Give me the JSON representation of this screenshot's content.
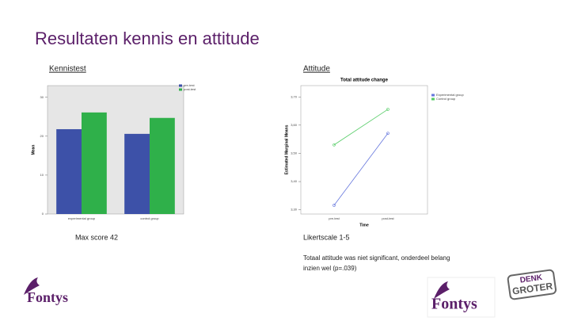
{
  "title": "Resultaten kennis en attitude",
  "left_heading": "Kennistest",
  "left_note": "Max score 42",
  "right_heading": "Attitude",
  "right_notes": [
    "Likertscale 1-5",
    "Totaal attitude was niet significant, onderdeel belang",
    "inzien wel (p=.039)"
  ],
  "logo_text": "Fontys",
  "badge": [
    "DENK",
    "GROTER"
  ],
  "chart_data": [
    {
      "type": "bar",
      "y_label": "Mean",
      "categories": [
        "experimental group",
        "control group"
      ],
      "series": [
        {
          "name": "pre-test",
          "color": "#3d51a8",
          "values": [
            21.8,
            20.6
          ]
        },
        {
          "name": "post-test",
          "color": "#2fb04a",
          "values": [
            26.1,
            24.7
          ]
        }
      ],
      "ylim": [
        0,
        33
      ],
      "yticks": [
        0,
        10,
        20,
        30
      ],
      "grid": false
    },
    {
      "type": "line",
      "title": "Total attitude change",
      "x_label": "Time",
      "y_label": "Estimated Marginal Means",
      "categories": [
        "pre-test",
        "post-test"
      ],
      "series": [
        {
          "name": "Experimental group",
          "color": "#6677dd",
          "values": [
            3.316,
            3.571
          ]
        },
        {
          "name": "Control group",
          "color": "#55cc66",
          "values": [
            3.53,
            3.656
          ]
        }
      ],
      "ylim": [
        3.285,
        3.74
      ],
      "yticks": [
        {
          "value": 3.3,
          "label": "3,30"
        },
        {
          "value": 3.4,
          "label": "3,40"
        },
        {
          "value": 3.5,
          "label": "3,50"
        },
        {
          "value": 3.6,
          "label": "3,60"
        },
        {
          "value": 3.7,
          "label": "3,70"
        }
      ],
      "grid": false
    }
  ]
}
